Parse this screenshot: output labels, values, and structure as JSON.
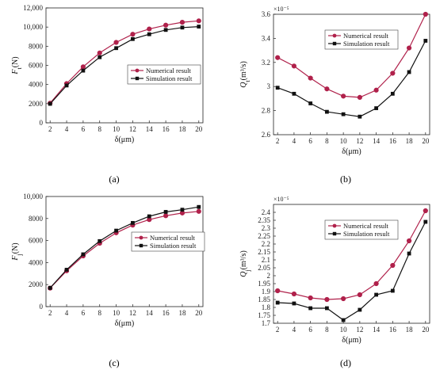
{
  "chart_data": [
    {
      "panel": "(a)",
      "type": "line",
      "x": [
        2,
        4,
        6,
        8,
        10,
        12,
        14,
        16,
        18,
        20
      ],
      "xlabel": "δ(μm)",
      "ylabel_main": "F",
      "ylabel_sub": "t",
      "ylabel_unit": "(N)",
      "ylim": [
        0,
        12000
      ],
      "yticks": [
        "0",
        "2000",
        "4000",
        "6000",
        "8000",
        "10,000",
        "12,000"
      ],
      "ytick_values": [
        0,
        2000,
        4000,
        6000,
        8000,
        10000,
        12000
      ],
      "multiplier": "",
      "legend_position": "middle-right",
      "series": [
        {
          "name": "Numerical result",
          "color": "#b0214b",
          "marker": "circle",
          "values": [
            2050,
            4100,
            5850,
            7300,
            8400,
            9250,
            9800,
            10200,
            10500,
            10650
          ]
        },
        {
          "name": "Simulation result",
          "color": "#111111",
          "marker": "square",
          "values": [
            1980,
            3900,
            5450,
            6850,
            7800,
            8750,
            9250,
            9700,
            9950,
            10050
          ]
        }
      ]
    },
    {
      "panel": "(b)",
      "type": "line",
      "x": [
        2,
        4,
        6,
        8,
        10,
        12,
        14,
        16,
        18,
        20
      ],
      "xlabel": "δ(μm)",
      "ylabel_main": "Q",
      "ylabel_sub": "t",
      "ylabel_unit": "(m³/s)",
      "ylim": [
        2.6,
        3.6
      ],
      "yticks": [
        "2.6",
        "2.8",
        "3",
        "3.2",
        "3.4",
        "3.6"
      ],
      "ytick_values": [
        2.6,
        2.8,
        3.0,
        3.2,
        3.4,
        3.6
      ],
      "multiplier": "×10⁻⁵",
      "legend_position": "top-right",
      "series": [
        {
          "name": "Numerical result",
          "color": "#b0214b",
          "marker": "circle",
          "values": [
            3.24,
            3.17,
            3.07,
            2.98,
            2.92,
            2.91,
            2.97,
            3.11,
            3.32,
            3.6
          ]
        },
        {
          "name": "Simulation result",
          "color": "#111111",
          "marker": "square",
          "values": [
            2.99,
            2.94,
            2.86,
            2.79,
            2.77,
            2.75,
            2.82,
            2.94,
            3.12,
            3.38
          ]
        }
      ]
    },
    {
      "panel": "(c)",
      "type": "line",
      "x": [
        2,
        4,
        6,
        8,
        10,
        12,
        14,
        16,
        18,
        20
      ],
      "xlabel": "δ(μm)",
      "ylabel_main": "F",
      "ylabel_sub": "j",
      "ylabel_unit": "(N)",
      "ylim": [
        0,
        10000
      ],
      "yticks": [
        "0",
        "2000",
        "4000",
        "6000",
        "8000",
        "10,000"
      ],
      "ytick_values": [
        0,
        2000,
        4000,
        6000,
        8000,
        10000
      ],
      "multiplier": "",
      "legend_position": "middle-right",
      "series": [
        {
          "name": "Numerical result",
          "color": "#b0214b",
          "marker": "circle",
          "values": [
            1680,
            3250,
            4600,
            5750,
            6700,
            7400,
            7900,
            8250,
            8500,
            8650
          ]
        },
        {
          "name": "Simulation result",
          "color": "#111111",
          "marker": "square",
          "values": [
            1700,
            3350,
            4750,
            5950,
            6900,
            7600,
            8200,
            8600,
            8800,
            9050
          ]
        }
      ]
    },
    {
      "panel": "(d)",
      "type": "line",
      "x": [
        2,
        4,
        6,
        8,
        10,
        12,
        14,
        16,
        18,
        20
      ],
      "xlabel": "δ(μm)",
      "ylabel_main": "Q",
      "ylabel_sub": "j",
      "ylabel_unit": "(m³/s)",
      "ylim": [
        1.7,
        2.45
      ],
      "yticks": [
        "1.7",
        "1.75",
        "1.8",
        "1.85",
        "1.9",
        "1.95",
        "2",
        "2.05",
        "2.1",
        "2.15",
        "2.2",
        "2.25",
        "2.3",
        "2.35",
        "2.4"
      ],
      "ytick_values": [
        1.7,
        1.75,
        1.8,
        1.85,
        1.9,
        1.95,
        2.0,
        2.05,
        2.1,
        2.15,
        2.2,
        2.25,
        2.3,
        2.35,
        2.4
      ],
      "multiplier": "×10⁻⁵",
      "legend_position": "top-right",
      "series": [
        {
          "name": "Numerical result",
          "color": "#b0214b",
          "marker": "circle",
          "values": [
            1.905,
            1.885,
            1.86,
            1.85,
            1.855,
            1.88,
            1.95,
            2.065,
            2.22,
            2.41
          ]
        },
        {
          "name": "Simulation result",
          "color": "#111111",
          "marker": "square",
          "values": [
            1.83,
            1.825,
            1.795,
            1.795,
            1.72,
            1.785,
            1.88,
            1.905,
            2.14,
            2.34
          ]
        }
      ]
    }
  ]
}
